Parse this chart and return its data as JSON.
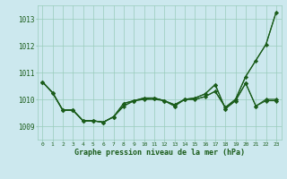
{
  "bg_color": "#cce8ee",
  "grid_color": "#99ccbb",
  "line_color": "#1a5c1a",
  "marker_color": "#1a5c1a",
  "xlabel": "Graphe pression niveau de la mer (hPa)",
  "xlabel_color": "#1a5c1a",
  "ylim": [
    1008.5,
    1013.5
  ],
  "yticks": [
    1009,
    1010,
    1011,
    1012,
    1013
  ],
  "xticks": [
    0,
    1,
    2,
    3,
    4,
    5,
    6,
    7,
    8,
    9,
    10,
    11,
    12,
    13,
    14,
    15,
    16,
    17,
    18,
    19,
    20,
    21,
    22,
    23
  ],
  "line_smooth": [
    1010.65,
    1010.25,
    1009.6,
    1009.6,
    1009.2,
    1009.2,
    1009.15,
    1009.35,
    1009.75,
    1009.95,
    1010.0,
    1010.0,
    1009.95,
    1009.8,
    1010.0,
    1010.0,
    1010.1,
    1010.3,
    1009.7,
    1010.0,
    1010.85,
    1011.45,
    1012.05,
    1013.25
  ],
  "line_wiggly": [
    1010.65,
    1010.25,
    1009.6,
    1009.6,
    1009.2,
    1009.2,
    1009.15,
    1009.35,
    1009.85,
    1009.95,
    1010.05,
    1010.05,
    1009.95,
    1009.75,
    1010.0,
    1010.05,
    1010.2,
    1010.55,
    1009.65,
    1009.95,
    1010.6,
    1009.75,
    1010.0,
    1010.0
  ],
  "line_flat": [
    1010.65,
    1010.25,
    1009.6,
    1009.6,
    1009.2,
    1009.2,
    1009.15,
    1009.35,
    1009.85,
    1009.95,
    1010.05,
    1010.05,
    1009.95,
    1009.75,
    1010.0,
    1010.05,
    1010.2,
    1010.55,
    1009.65,
    1009.95,
    1010.6,
    1009.75,
    1009.95,
    1009.95
  ],
  "line_rising": [
    1010.65,
    1010.25,
    1009.6,
    1009.6,
    1009.2,
    1009.2,
    1009.15,
    1009.35,
    1009.75,
    1009.95,
    1010.0,
    1010.05,
    1009.95,
    1009.8,
    1010.0,
    1010.0,
    1010.1,
    1010.3,
    1009.7,
    1010.0,
    1010.85,
    1011.45,
    1012.05,
    1013.25
  ]
}
